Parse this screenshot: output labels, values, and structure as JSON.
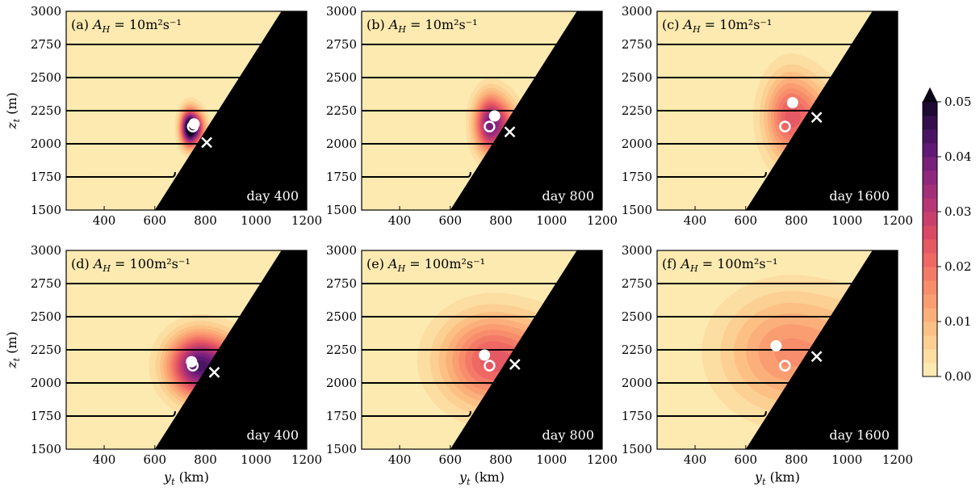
{
  "chart_data": {
    "type": "contour",
    "x_axis": {
      "label_var": "y",
      "label_sub": "t",
      "label_unit": "(km)",
      "range": [
        250,
        1200
      ],
      "ticks": [
        400,
        600,
        800,
        1000,
        1200
      ]
    },
    "y_axis": {
      "label_var": "z",
      "label_sub": "t",
      "label_unit": "(m)",
      "range": [
        1500,
        3000
      ],
      "ticks": [
        1500,
        1750,
        2000,
        2250,
        2500,
        2750,
        3000
      ]
    },
    "topography": {
      "line_from_km": [
        600,
        1500
      ],
      "line_to_km": [
        1100,
        3000
      ],
      "color": "#000000"
    },
    "isopycnal_tips": [
      {
        "z": 1750,
        "x_end": 680
      },
      {
        "z": 2000,
        "x_end": 810
      },
      {
        "z": 2250,
        "x_end": 945
      },
      {
        "z": 2500,
        "x_end": 1015
      },
      {
        "z": 2750,
        "x_end": 1085
      }
    ],
    "colorbar": {
      "min": 0.0,
      "max": 0.05,
      "ticks": [
        "0.00",
        "0.01",
        "0.02",
        "0.03",
        "0.04",
        "0.05"
      ],
      "colormap": "magma_r",
      "extend": "max",
      "levels": 20
    },
    "panels": [
      {
        "id": "a",
        "label": "(a)",
        "A_H_text": "A",
        "A_H_value": "= 10m²s⁻¹",
        "day": "day 400",
        "peak": 0.06,
        "center": [
          740,
          2120
        ],
        "spread": [
          35,
          130
        ],
        "tail": 0.35,
        "tail_len": 120,
        "filled_circle": [
          755,
          2150
        ],
        "open_circle": [
          750,
          2130
        ],
        "cross": [
          805,
          2010
        ]
      },
      {
        "id": "b",
        "label": "(b)",
        "A_H_text": "A",
        "A_H_value": "= 10m²s⁻¹",
        "day": "day 800",
        "peak": 0.04,
        "center": [
          760,
          2150
        ],
        "spread": [
          60,
          210
        ],
        "tail": 0.45,
        "tail_len": 160,
        "filled_circle": [
          775,
          2210
        ],
        "open_circle": [
          755,
          2130
        ],
        "cross": [
          835,
          2090
        ]
      },
      {
        "id": "c",
        "label": "(c)",
        "A_H_text": "A",
        "A_H_value": "= 10m²s⁻¹",
        "day": "day 1600",
        "peak": 0.024,
        "center": [
          780,
          2200
        ],
        "spread": [
          100,
          320
        ],
        "tail": 0.5,
        "tail_len": 220,
        "filled_circle": [
          785,
          2310
        ],
        "open_circle": [
          755,
          2130
        ],
        "cross": [
          880,
          2200
        ]
      },
      {
        "id": "d",
        "label": "(d)",
        "A_H_text": "A",
        "A_H_value": "= 100m²s⁻¹",
        "day": "day 400",
        "peak": 0.044,
        "center": [
          780,
          2130
        ],
        "spread": [
          120,
          230
        ],
        "tail": 0.35,
        "tail_len": 150,
        "filled_circle": [
          745,
          2160
        ],
        "open_circle": [
          750,
          2130
        ],
        "cross": [
          835,
          2080
        ]
      },
      {
        "id": "e",
        "label": "(e)",
        "A_H_text": "A",
        "A_H_value": "= 100m²s⁻¹",
        "day": "day 800",
        "peak": 0.024,
        "center": [
          770,
          2170
        ],
        "spread": [
          200,
          340
        ],
        "tail": 0.5,
        "tail_len": 250,
        "filled_circle": [
          735,
          2210
        ],
        "open_circle": [
          755,
          2130
        ],
        "cross": [
          855,
          2140
        ]
      },
      {
        "id": "f",
        "label": "(f)",
        "A_H_text": "A",
        "A_H_value": "= 100m²s⁻¹",
        "day": "day 1600",
        "peak": 0.016,
        "center": [
          780,
          2230
        ],
        "spread": [
          260,
          430
        ],
        "tail": 0.6,
        "tail_len": 300,
        "filled_circle": [
          720,
          2280
        ],
        "open_circle": [
          755,
          2130
        ],
        "cross": [
          880,
          2200
        ]
      }
    ]
  }
}
